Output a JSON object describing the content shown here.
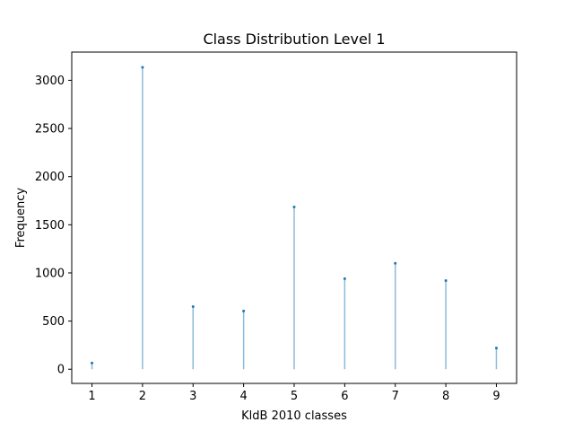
{
  "chart_data": {
    "type": "stem",
    "title": "Class Distribution Level 1",
    "xlabel": "KldB 2010 classes",
    "ylabel": "Frequency",
    "x": [
      1,
      2,
      3,
      4,
      5,
      6,
      7,
      8,
      9
    ],
    "values": [
      65,
      3135,
      650,
      605,
      1685,
      940,
      1100,
      920,
      220
    ],
    "xlim": [
      0.6,
      9.4
    ],
    "ylim": [
      -147,
      3293
    ],
    "xticks": [
      1,
      2,
      3,
      4,
      5,
      6,
      7,
      8,
      9
    ],
    "yticks": [
      0,
      500,
      1000,
      1500,
      2000,
      2500,
      3000
    ],
    "grid": false,
    "line_color": "#8ebad9",
    "marker_color": "#1f77b4"
  }
}
